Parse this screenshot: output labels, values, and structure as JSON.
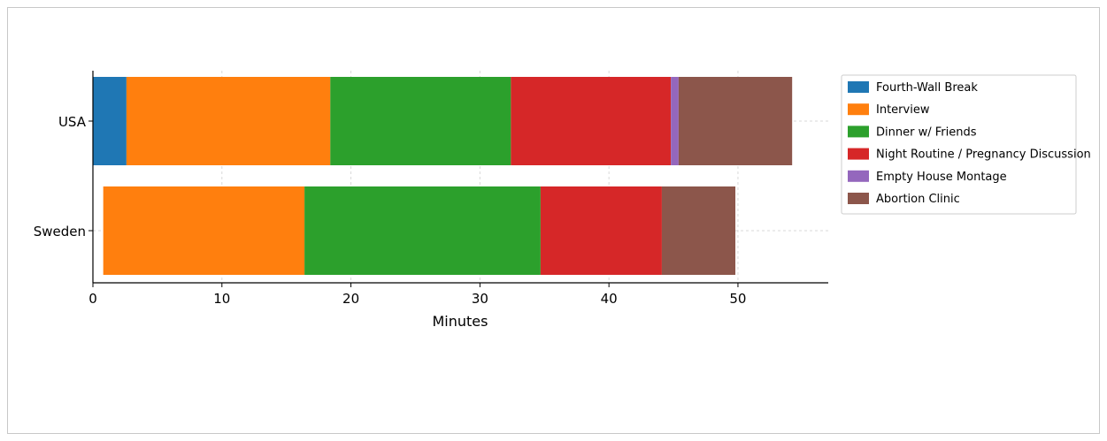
{
  "chart_data": {
    "type": "bar",
    "orientation": "horizontal",
    "stacked": true,
    "xlabel": "Minutes",
    "ylabel": "",
    "xlim": [
      0,
      57
    ],
    "xticks": [
      0,
      10,
      20,
      30,
      40,
      50
    ],
    "grid": true,
    "legend_position": "right",
    "categories": [
      "USA",
      "Sweden"
    ],
    "series": [
      {
        "name": "Fourth-Wall Break",
        "color": "#1f77b4",
        "segments": [
          [
            0,
            2.6
          ],
          null
        ]
      },
      {
        "name": "Interview",
        "color": "#ff7f0e",
        "segments": [
          [
            2.6,
            18.4
          ],
          [
            0.8,
            16.4
          ]
        ]
      },
      {
        "name": "Dinner w/ Friends",
        "color": "#2ca02c",
        "segments": [
          [
            18.4,
            32.4
          ],
          [
            16.4,
            34.7
          ]
        ]
      },
      {
        "name": "Night Routine / Pregnancy Discussion",
        "color": "#d62728",
        "segments": [
          [
            32.4,
            44.8
          ],
          [
            34.7,
            44.1
          ]
        ]
      },
      {
        "name": "Empty House Montage",
        "color": "#9467bd",
        "segments": [
          [
            44.8,
            45.4
          ],
          null
        ]
      },
      {
        "name": "Abortion Clinic",
        "color": "#8c564b",
        "segments": [
          [
            45.4,
            54.2
          ],
          [
            44.1,
            49.8
          ]
        ]
      }
    ]
  }
}
